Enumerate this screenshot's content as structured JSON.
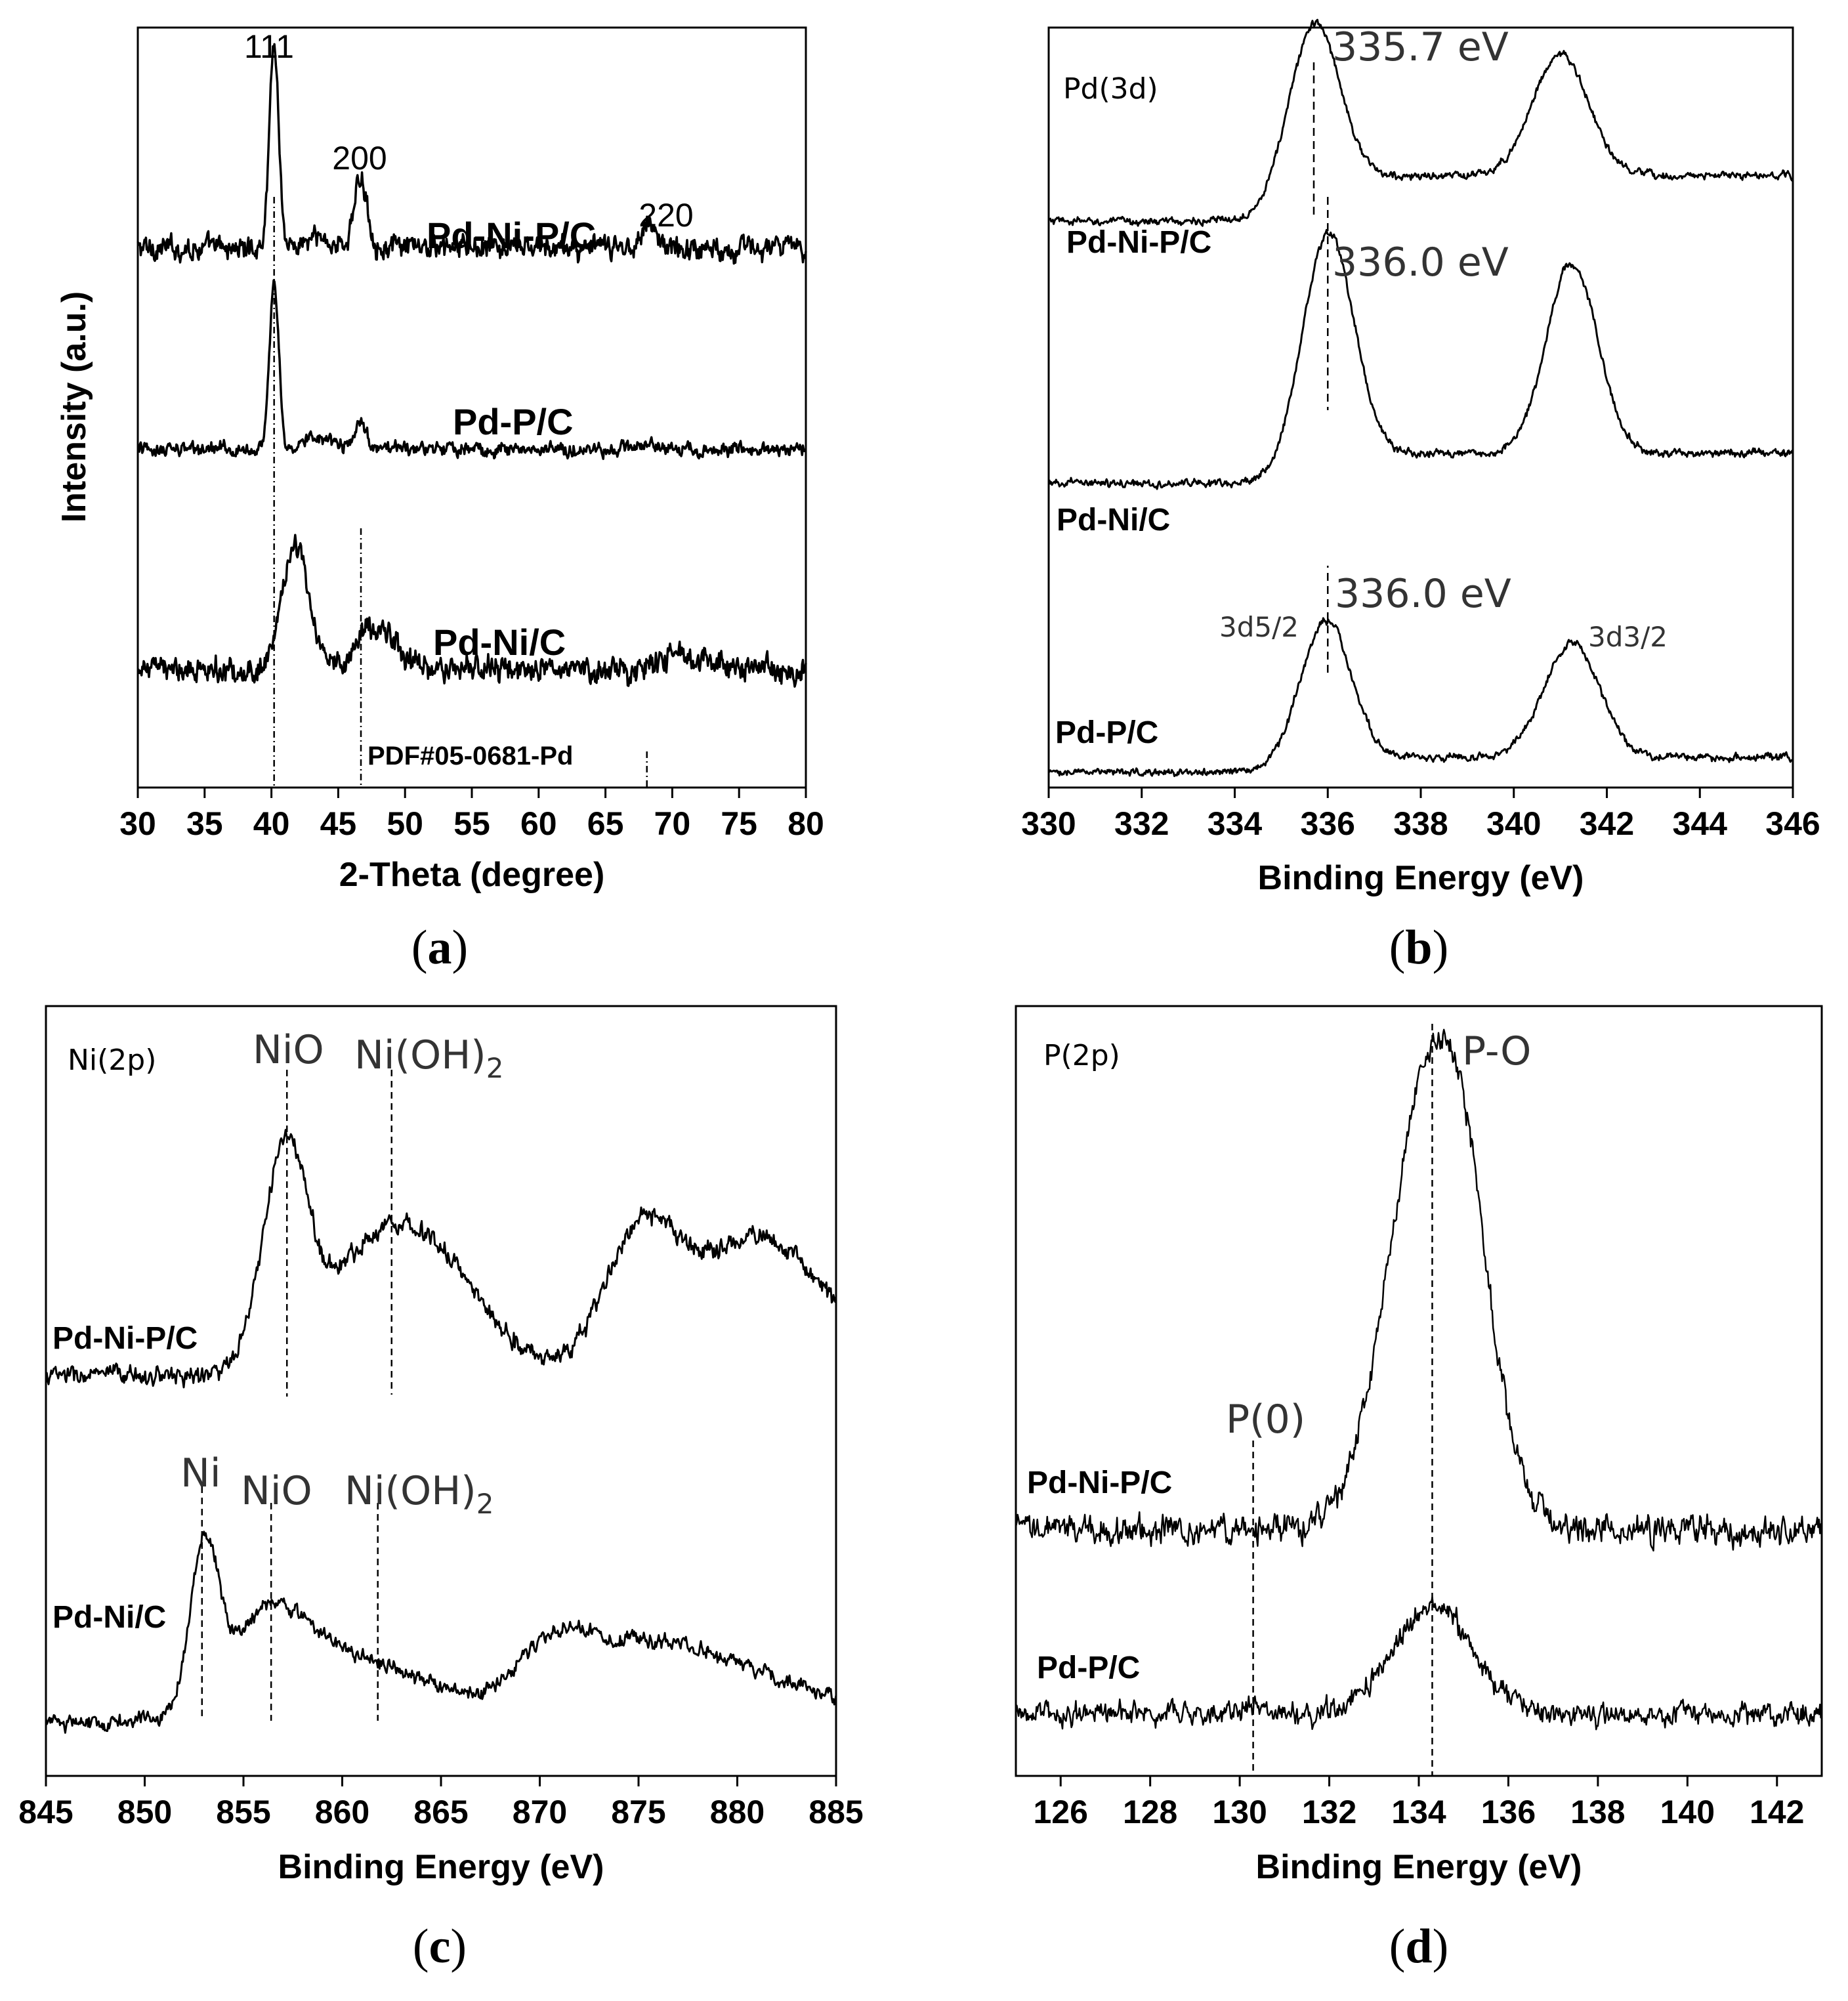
{
  "chart_data": [
    {
      "type": "line",
      "id": "a",
      "caption_letter": "a",
      "xlabel": "2-Theta (degree)",
      "ylabel": "Intensity (a.u.)",
      "xlim": [
        30,
        80
      ],
      "xticks": [
        "30",
        "35",
        "40",
        "45",
        "50",
        "55",
        "60",
        "65",
        "70",
        "75",
        "80"
      ],
      "series": [
        {
          "name": "Pd-Ni-P/C",
          "baseline": 0.71,
          "noise": 0.012,
          "peaks": [
            [
              40.2,
              0.27,
              0.35
            ],
            [
              46.7,
              0.09,
              0.5
            ],
            [
              68.2,
              0.032,
              0.6
            ],
            [
              43.5,
              0.012,
              1.0
            ]
          ]
        },
        {
          "name": "Pd-P/C",
          "baseline": 0.445,
          "noise": 0.007,
          "peaks": [
            [
              40.2,
              0.22,
              0.35
            ],
            [
              46.7,
              0.038,
              0.4
            ],
            [
              43.5,
              0.018,
              1.0
            ],
            [
              68.2,
              0.012,
              0.5
            ]
          ]
        },
        {
          "name": "Pd-Ni/C",
          "baseline": 0.155,
          "noise": 0.013,
          "peaks": [
            [
              41.8,
              0.16,
              1.0
            ],
            [
              47.8,
              0.06,
              1.4
            ],
            [
              70.8,
              0.015,
              2.0
            ]
          ]
        }
      ],
      "peak_labels": [
        {
          "x": 40.2,
          "text": "111"
        },
        {
          "x": 46.8,
          "text": "200"
        },
        {
          "x": 68.3,
          "text": "220"
        }
      ],
      "reference": {
        "label": "PDF#05-0681-Pd",
        "lines": [
          40.2,
          46.7,
          68.1
        ]
      }
    },
    {
      "type": "line",
      "id": "b",
      "caption_letter": "b",
      "panel_title": "Pd(3d)",
      "xlabel": "Binding Energy (eV)",
      "xlim": [
        330,
        346
      ],
      "xticks": [
        "330",
        "332",
        "334",
        "336",
        "338",
        "340",
        "342",
        "344",
        "346"
      ],
      "series": [
        {
          "name": "Pd-Ni-P/C",
          "baseline": 0.745,
          "noise": 0.004,
          "peaks": [
            [
              335.7,
              0.23,
              0.55
            ],
            [
              341.0,
              0.16,
              0.6
            ]
          ],
          "tail_right": 0.06
        },
        {
          "name": "Pd-Ni/C",
          "baseline": 0.4,
          "noise": 0.004,
          "peaks": [
            [
              336.0,
              0.31,
              0.55
            ],
            [
              341.25,
              0.25,
              0.55
            ]
          ],
          "tail_right": 0.04
        },
        {
          "name": "Pd-P/C",
          "baseline": 0.02,
          "noise": 0.004,
          "peaks": [
            [
              335.95,
              0.19,
              0.55
            ],
            [
              341.25,
              0.15,
              0.6
            ]
          ],
          "tail_right": 0.02
        }
      ],
      "annotations": [
        {
          "x": 335.7,
          "text": "335.7 eV"
        },
        {
          "x": 336.0,
          "text": "336.0 eV"
        },
        {
          "x": 336.0,
          "text": "336.0 eV"
        }
      ],
      "orbital_labels": [
        "3d5/2",
        "3d3/2"
      ]
    },
    {
      "type": "line",
      "id": "c",
      "caption_letter": "c",
      "panel_title": "Ni(2p)",
      "xlabel": "Binding Energy (eV)",
      "xlim": [
        845,
        885
      ],
      "xticks": [
        "845",
        "850",
        "855",
        "860",
        "865",
        "870",
        "875",
        "880",
        "885"
      ],
      "series": [
        {
          "name": "Pd-Ni-P/C",
          "baseline": 0.52,
          "noise": 0.01,
          "peaks": [
            [
              857.1,
              0.27,
              1.1
            ],
            [
              862.3,
              0.18,
              3.0
            ],
            [
              875.0,
              0.16,
              1.8
            ],
            [
              881.0,
              0.18,
              3.5
            ],
            [
              866.0,
              0.05,
              2.5
            ]
          ]
        },
        {
          "name": "Pd-Ni/C",
          "baseline": 0.07,
          "noise": 0.008,
          "peaks": [
            [
              853.0,
              0.2,
              0.7
            ],
            [
              856.3,
              0.13,
              2.2
            ],
            [
              861.5,
              0.07,
              3.5
            ],
            [
              870.5,
              0.06,
              1.8
            ],
            [
              874.0,
              0.08,
              3.5
            ],
            [
              880.0,
              0.06,
              4.0
            ]
          ]
        }
      ],
      "annotations": [
        {
          "x": 857.2,
          "text": "NiO"
        },
        {
          "x": 862.5,
          "text": "Ni(OH)",
          "sub": "2"
        },
        {
          "x": 852.9,
          "text": "Ni"
        },
        {
          "x": 856.4,
          "text": "NiO"
        },
        {
          "x": 861.8,
          "text": "Ni(OH)",
          "sub": "2"
        }
      ]
    },
    {
      "type": "line",
      "id": "d",
      "caption_letter": "d",
      "panel_title": "P(2p)",
      "xlabel": "Binding Energy (eV)",
      "xlim": [
        125,
        143
      ],
      "xticks": [
        "126",
        "128",
        "130",
        "132",
        "134",
        "136",
        "138",
        "140",
        "142"
      ],
      "series": [
        {
          "name": "Pd-Ni-P/C",
          "baseline": 0.32,
          "noise": 0.015,
          "peaks": [
            [
              134.35,
              0.62,
              0.95
            ],
            [
              135.1,
              0.08,
              0.4
            ]
          ]
        },
        {
          "name": "Pd-P/C",
          "baseline": 0.08,
          "noise": 0.012,
          "peaks": [
            [
              134.3,
              0.14,
              0.9
            ],
            [
              130.3,
              0.015,
              0.2
            ]
          ]
        }
      ],
      "annotations": [
        {
          "x": 134.3,
          "text": "P-O"
        },
        {
          "x": 130.3,
          "text": "P(0)"
        }
      ]
    }
  ]
}
